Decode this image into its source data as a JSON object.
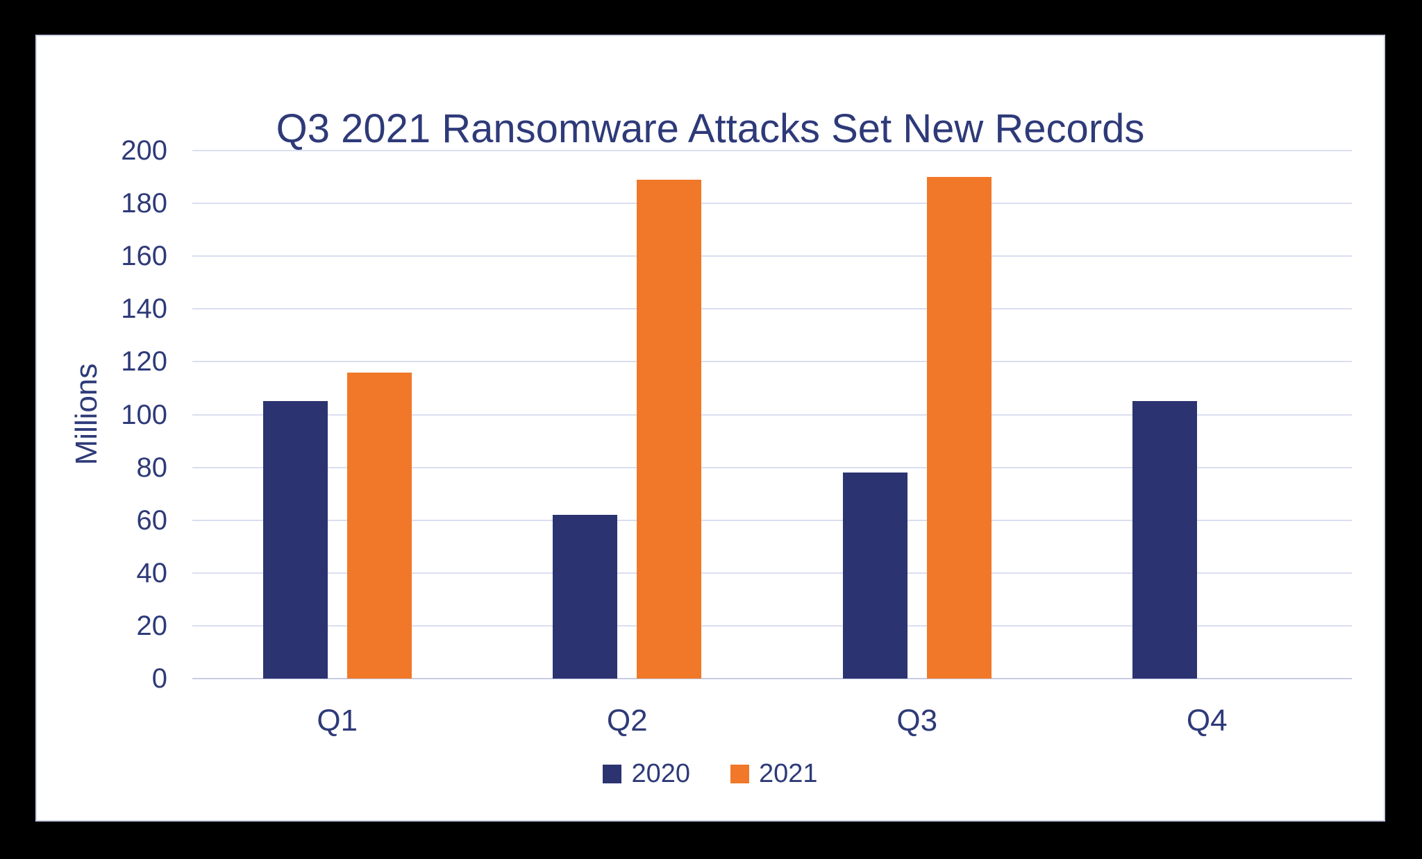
{
  "chart_data": {
    "type": "bar",
    "title": "Q3 2021 Ransomware Attacks Set New Records",
    "ylabel": "Millions",
    "xlabel": "",
    "categories": [
      "Q1",
      "Q2",
      "Q3",
      "Q4"
    ],
    "series": [
      {
        "name": "2020",
        "color": "#2b3371",
        "values": [
          105,
          62,
          78,
          105
        ]
      },
      {
        "name": "2021",
        "color": "#f07828",
        "values": [
          116,
          189,
          190,
          null
        ]
      }
    ],
    "ylim": [
      0,
      200
    ],
    "ytick_step": 20,
    "grid": true,
    "legend_position": "bottom"
  },
  "colors": {
    "text": "#2e3a78",
    "gridline": "#dadef0",
    "axis_line": "#c7cce5",
    "card_border": "#c9cee6",
    "card_background": "#ffffff",
    "page_background": "#000000"
  }
}
